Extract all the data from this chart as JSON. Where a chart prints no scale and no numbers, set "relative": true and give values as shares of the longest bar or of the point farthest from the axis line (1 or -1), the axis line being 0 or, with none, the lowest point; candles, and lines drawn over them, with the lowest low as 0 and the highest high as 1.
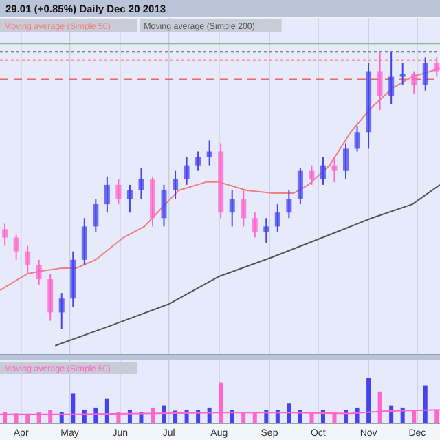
{
  "chart_data": [
    {
      "type": "candlestick",
      "relative": true,
      "title": "29.01 (+0.85%)   Daily   Dec 20 2013",
      "legend": "top left",
      "grid": "x",
      "tick_labels": false,
      "xlim": [
        "2013-03-19",
        "2013-12-15"
      ],
      "xticks": [
        {
          "value": "2013-04-01",
          "label": null
        },
        {
          "value": "2013-05-01",
          "label": null
        },
        {
          "value": "2013-06-01",
          "label": null
        },
        {
          "value": "2013-07-01",
          "label": null
        },
        {
          "value": "2013-08-01",
          "label": null
        },
        {
          "value": "2013-09-01",
          "label": null
        },
        {
          "value": "2013-10-01",
          "label": null
        },
        {
          "value": "2013-11-01",
          "label": null
        },
        {
          "value": "2013-12-01",
          "label": null
        }
      ],
      "x": [
        "2013-03-22",
        "2013-03-29",
        "2013-04-05",
        "2013-04-12",
        "2013-04-19",
        "2013-04-26",
        "2013-05-03",
        "2013-05-10",
        "2013-05-17",
        "2013-05-24",
        "2013-05-31",
        "2013-06-07",
        "2013-06-14",
        "2013-06-21",
        "2013-06-28",
        "2013-07-05",
        "2013-07-12",
        "2013-07-19",
        "2013-07-26",
        "2013-08-02",
        "2013-08-09",
        "2013-08-16",
        "2013-08-23",
        "2013-08-30",
        "2013-09-06",
        "2013-09-13",
        "2013-09-20",
        "2013-09-27",
        "2013-10-04",
        "2013-10-11",
        "2013-10-18",
        "2013-10-25",
        "2013-11-01",
        "2013-11-08",
        "2013-11-15",
        "2013-11-22",
        "2013-11-29",
        "2013-12-06",
        "2013-12-13"
      ],
      "ohlc": [
        [
          0.36,
          0.38,
          0.3,
          0.33
        ],
        [
          0.33,
          0.34,
          0.25,
          0.28
        ],
        [
          0.28,
          0.3,
          0.2,
          0.23
        ],
        [
          0.23,
          0.25,
          0.16,
          0.18
        ],
        [
          0.18,
          0.2,
          0.03,
          0.06
        ],
        [
          0.06,
          0.13,
          0.0,
          0.11
        ],
        [
          0.11,
          0.28,
          0.08,
          0.25
        ],
        [
          0.25,
          0.4,
          0.23,
          0.37
        ],
        [
          0.37,
          0.47,
          0.35,
          0.45
        ],
        [
          0.45,
          0.55,
          0.42,
          0.52
        ],
        [
          0.52,
          0.54,
          0.45,
          0.47
        ],
        [
          0.47,
          0.52,
          0.42,
          0.5
        ],
        [
          0.5,
          0.58,
          0.47,
          0.54
        ],
        [
          0.54,
          0.55,
          0.37,
          0.4
        ],
        [
          0.4,
          0.52,
          0.37,
          0.5
        ],
        [
          0.5,
          0.57,
          0.47,
          0.54
        ],
        [
          0.54,
          0.62,
          0.52,
          0.59
        ],
        [
          0.59,
          0.64,
          0.57,
          0.62
        ],
        [
          0.62,
          0.68,
          0.59,
          0.64
        ],
        [
          0.64,
          0.67,
          0.4,
          0.42
        ],
        [
          0.42,
          0.5,
          0.37,
          0.47
        ],
        [
          0.47,
          0.5,
          0.37,
          0.4
        ],
        [
          0.4,
          0.42,
          0.33,
          0.35
        ],
        [
          0.35,
          0.4,
          0.31,
          0.37
        ],
        [
          0.37,
          0.45,
          0.35,
          0.42
        ],
        [
          0.42,
          0.5,
          0.4,
          0.47
        ],
        [
          0.47,
          0.58,
          0.45,
          0.57
        ],
        [
          0.57,
          0.59,
          0.52,
          0.54
        ],
        [
          0.54,
          0.62,
          0.52,
          0.59
        ],
        [
          0.59,
          0.62,
          0.53,
          0.57
        ],
        [
          0.57,
          0.67,
          0.54,
          0.65
        ],
        [
          0.65,
          0.73,
          0.64,
          0.71
        ],
        [
          0.71,
          0.96,
          0.65,
          0.93
        ],
        [
          0.93,
          1.0,
          0.79,
          0.84
        ],
        [
          0.84,
          1.0,
          0.81,
          0.91
        ],
        [
          0.91,
          0.96,
          0.88,
          0.92
        ],
        [
          0.92,
          0.93,
          0.85,
          0.88
        ],
        [
          0.88,
          0.98,
          0.86,
          0.96
        ],
        [
          0.96,
          0.98,
          0.91,
          0.93
        ]
      ],
      "colors": [
        "#ff66cc",
        "#ff66cc",
        "#ff66cc",
        "#ff66cc",
        "#ff66cc",
        "#4444ee",
        "#4444ee",
        "#4444ee",
        "#4444ee",
        "#4444ee",
        "#ff66cc",
        "#4444ee",
        "#4444ee",
        "#ff66cc",
        "#4444ee",
        "#4444ee",
        "#4444ee",
        "#4444ee",
        "#4444ee",
        "#ff66cc",
        "#4444ee",
        "#ff66cc",
        "#ff66cc",
        "#4444ee",
        "#4444ee",
        "#4444ee",
        "#4444ee",
        "#ff66cc",
        "#4444ee",
        "#ff66cc",
        "#4444ee",
        "#4444ee",
        "#4444ee",
        "#ff66cc",
        "#4444ee",
        "#4444ee",
        "#ff66cc",
        "#4444ee",
        "#ff66cc"
      ],
      "series": [
        {
          "type": "line",
          "name": "Moving average (Simple 50)",
          "color": "#f08080",
          "x": [
            "2013-03-19",
            "2013-04-05",
            "2013-04-14",
            "2013-04-26",
            "2013-05-05",
            "2013-05-17",
            "2013-06-03",
            "2013-06-16",
            "2013-06-24",
            "2013-07-07",
            "2013-07-24",
            "2013-08-01",
            "2013-08-18",
            "2013-09-03",
            "2013-09-16",
            "2013-09-25",
            "2013-10-08",
            "2013-10-21",
            "2013-11-03",
            "2013-11-16",
            "2013-11-28",
            "2013-12-15"
          ],
          "values": [
            0.14,
            0.2,
            0.21,
            0.22,
            0.22,
            0.25,
            0.33,
            0.37,
            0.42,
            0.5,
            0.53,
            0.53,
            0.5,
            0.49,
            0.49,
            0.52,
            0.59,
            0.71,
            0.8,
            0.87,
            0.91,
            0.94
          ]
        },
        {
          "type": "line",
          "name": "Moving average (Simple 200)",
          "color": "#555555",
          "x": [
            "2013-04-22",
            "2013-05-25",
            "2013-07-01",
            "2013-08-01",
            "2013-09-03",
            "2013-10-08",
            "2013-11-03",
            "2013-11-28",
            "2013-12-15"
          ],
          "values": [
            -0.06,
            0.01,
            0.09,
            0.19,
            0.26,
            0.34,
            0.4,
            0.45,
            0.52
          ]
        }
      ],
      "ref_lines": [
        {
          "axis": "y",
          "value": 1.03,
          "color": "#88bb88",
          "line_style": "solid"
        },
        {
          "axis": "y",
          "value": 1.0,
          "color": "#666666",
          "line_style": "dotted"
        },
        {
          "axis": "y",
          "value": 0.97,
          "color": "#ff9999",
          "line_style": "dotted"
        },
        {
          "axis": "y",
          "value": 0.9,
          "color": "#ee6666",
          "line_style": "dashed"
        }
      ]
    },
    {
      "type": "bar",
      "relative": true,
      "grid": "x",
      "legend": "top left",
      "tick_labels": "x",
      "xlim": [
        "2013-03-19",
        "2013-12-15"
      ],
      "xticks": [
        {
          "value": "2013-04-01",
          "label": "Apr"
        },
        {
          "value": "2013-05-01",
          "label": "May"
        },
        {
          "value": "2013-06-01",
          "label": "Jun"
        },
        {
          "value": "2013-07-01",
          "label": "Jul"
        },
        {
          "value": "2013-08-01",
          "label": "Aug"
        },
        {
          "value": "2013-09-01",
          "label": "Sep"
        },
        {
          "value": "2013-10-01",
          "label": "Oct"
        },
        {
          "value": "2013-11-01",
          "label": "Nov"
        },
        {
          "value": "2013-12-01",
          "label": "Dec"
        }
      ],
      "series": [
        {
          "type": "bar",
          "x": [
            "2013-03-22",
            "2013-03-29",
            "2013-04-05",
            "2013-04-12",
            "2013-04-19",
            "2013-04-26",
            "2013-05-03",
            "2013-05-10",
            "2013-05-17",
            "2013-05-24",
            "2013-05-31",
            "2013-06-07",
            "2013-06-14",
            "2013-06-21",
            "2013-06-28",
            "2013-07-05",
            "2013-07-12",
            "2013-07-19",
            "2013-07-26",
            "2013-08-02",
            "2013-08-09",
            "2013-08-16",
            "2013-08-23",
            "2013-08-30",
            "2013-09-06",
            "2013-09-13",
            "2013-09-20",
            "2013-09-27",
            "2013-10-04",
            "2013-10-11",
            "2013-10-18",
            "2013-10-25",
            "2013-11-01",
            "2013-11-08",
            "2013-11-15",
            "2013-11-22",
            "2013-11-29",
            "2013-12-06",
            "2013-12-13"
          ],
          "values": [
            0.25,
            0.22,
            0.2,
            0.25,
            0.3,
            0.25,
            0.66,
            0.3,
            0.35,
            0.55,
            0.25,
            0.3,
            0.25,
            0.35,
            0.4,
            0.28,
            0.3,
            0.3,
            0.35,
            0.9,
            0.3,
            0.25,
            0.25,
            0.3,
            0.3,
            0.45,
            0.3,
            0.25,
            0.3,
            0.25,
            0.3,
            0.35,
            1.0,
            0.7,
            0.4,
            0.35,
            0.3,
            0.84,
            0.3
          ],
          "colors": [
            "#ff66cc",
            "#ff66cc",
            "#ff66cc",
            "#ff66cc",
            "#ff66cc",
            "#4444ee",
            "#4444ee",
            "#4444ee",
            "#4444ee",
            "#4444ee",
            "#ff66cc",
            "#4444ee",
            "#4444ee",
            "#ff66cc",
            "#4444ee",
            "#4444ee",
            "#4444ee",
            "#4444ee",
            "#4444ee",
            "#ff66cc",
            "#4444ee",
            "#ff66cc",
            "#ff66cc",
            "#4444ee",
            "#4444ee",
            "#4444ee",
            "#4444ee",
            "#ff66cc",
            "#4444ee",
            "#ff66cc",
            "#4444ee",
            "#4444ee",
            "#4444ee",
            "#ff66cc",
            "#4444ee",
            "#4444ee",
            "#ff66cc",
            "#4444ee",
            "#ff66cc"
          ]
        },
        {
          "type": "line",
          "name": "Moving average (Simple 50)",
          "color": "#ff66cc",
          "x": [
            "2013-03-19",
            "2013-05-01",
            "2013-06-15",
            "2013-08-01",
            "2013-09-15",
            "2013-10-20",
            "2013-11-10",
            "2013-12-15"
          ],
          "values": [
            0.2,
            0.2,
            0.22,
            0.24,
            0.24,
            0.22,
            0.27,
            0.3
          ]
        }
      ]
    }
  ]
}
